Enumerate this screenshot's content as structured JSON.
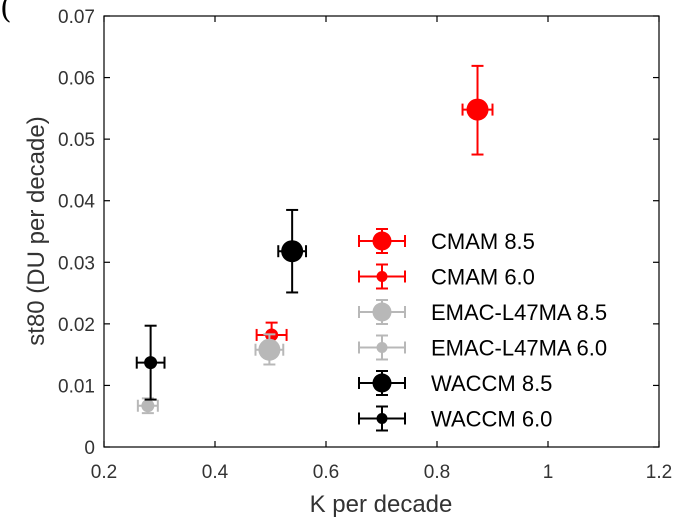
{
  "chart_data": {
    "type": "scatter",
    "title_fragment": "(",
    "xlabel": "K per decade",
    "ylabel": "st80 (DU per decade)",
    "xlim": [
      0.2,
      1.2
    ],
    "ylim": [
      0,
      0.07
    ],
    "xticks": [
      "0.2",
      "0.4",
      "0.6",
      "0.8",
      "1",
      "1.2"
    ],
    "yticks": [
      "0",
      "0.01",
      "0.02",
      "0.03",
      "0.04",
      "0.05",
      "0.06",
      "0.07"
    ],
    "grid": false,
    "legend_position": "bottom-right",
    "series": [
      {
        "name": "CMAM 8.5",
        "color": "#ff0000",
        "marker": "large",
        "x": 0.873,
        "y": 0.0548,
        "xerr": 0.027,
        "yerr_low": 0.0475,
        "yerr_high": 0.0619
      },
      {
        "name": "CMAM 6.0",
        "color": "#ff0000",
        "marker": "small",
        "x": 0.502,
        "y": 0.0182,
        "xerr": 0.027,
        "yerr_low": 0.0165,
        "yerr_high": 0.0202
      },
      {
        "name": "EMAC-L47MA 8.5",
        "color": "#b8b8b8",
        "marker": "large",
        "x": 0.498,
        "y": 0.0158,
        "xerr": 0.025,
        "yerr_low": 0.0134,
        "yerr_high": 0.0183
      },
      {
        "name": "EMAC-L47MA 6.0",
        "color": "#b8b8b8",
        "marker": "small",
        "x": 0.279,
        "y": 0.0067,
        "xerr": 0.018,
        "yerr_low": 0.0055,
        "yerr_high": 0.0079
      },
      {
        "name": "WACCM 8.5",
        "color": "#000000",
        "marker": "large",
        "x": 0.539,
        "y": 0.0318,
        "xerr": 0.025,
        "yerr_low": 0.0251,
        "yerr_high": 0.0385
      },
      {
        "name": "WACCM 6.0",
        "color": "#000000",
        "marker": "small",
        "x": 0.284,
        "y": 0.0137,
        "xerr": 0.025,
        "yerr_low": 0.0077,
        "yerr_high": 0.0197
      }
    ]
  }
}
